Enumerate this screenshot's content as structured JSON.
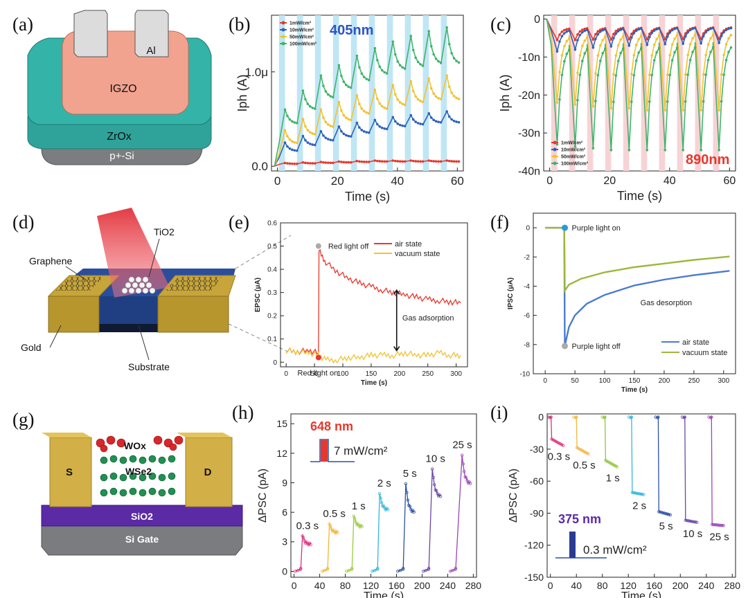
{
  "panel_labels": [
    "(a)",
    "(b)",
    "(c)",
    "(d)",
    "(e)",
    "(f)",
    "(g)",
    "(h)",
    "(i)"
  ],
  "diagram_a": {
    "layers": [
      "Al",
      "IGZO",
      "ZrOx",
      "p+-Si"
    ]
  },
  "diagram_d": {
    "labels": [
      "TiO2",
      "Graphene",
      "Gold",
      "Substrate"
    ]
  },
  "diagram_g": {
    "labels": [
      "WOx",
      "WSe2",
      "S",
      "D",
      "SiO2",
      "Si Gate"
    ]
  },
  "colors": {
    "red": "#e8372c",
    "blue": "#2f62b8",
    "yellow": "#f2c230",
    "green": "#3fb36b",
    "olive": "#9db73a",
    "light_blue": "#bfe6f5",
    "light_pink": "#f7d3d6"
  },
  "chart_data": [
    {
      "panel": "b",
      "type": "line",
      "title": "405nm",
      "xlabel": "Time (s)",
      "ylabel": "Iph (A)",
      "xlim": [
        -2,
        62
      ],
      "ylim": [
        -0.05,
        1.6
      ],
      "xticks": [
        0,
        20,
        40,
        60
      ],
      "yticks": [
        0.0,
        1.0
      ],
      "ytick_labels": [
        "0.0",
        "1.0μ"
      ],
      "shaded_intervals": [
        [
          0.5,
          2.5
        ],
        [
          6.5,
          8.5
        ],
        [
          12.5,
          14.5
        ],
        [
          18.5,
          20.5
        ],
        [
          24.5,
          26.5
        ],
        [
          30.5,
          32.5
        ],
        [
          36.5,
          38.5
        ],
        [
          42.5,
          44.5
        ],
        [
          48.5,
          50.5
        ],
        [
          54.5,
          56.5
        ]
      ],
      "shade_color": "#bfe6f5",
      "series": [
        {
          "name": "1mW/cm²",
          "color": "#e8372c",
          "baseline": [
            0.02,
            0.025,
            0.03,
            0.035,
            0.04,
            0.045,
            0.05,
            0.05,
            0.05,
            0.05
          ],
          "peak": [
            0.035,
            0.04,
            0.045,
            0.05,
            0.055,
            0.06,
            0.06,
            0.06,
            0.06,
            0.06
          ]
        },
        {
          "name": "10mW/cm²",
          "color": "#2f62b8",
          "baseline": [
            0.09,
            0.16,
            0.22,
            0.27,
            0.31,
            0.35,
            0.39,
            0.42,
            0.44,
            0.46
          ],
          "peak": [
            0.25,
            0.32,
            0.37,
            0.42,
            0.46,
            0.49,
            0.52,
            0.54,
            0.56,
            0.58
          ]
        },
        {
          "name": "50mW/cm²",
          "color": "#f2c230",
          "baseline": [
            0.13,
            0.24,
            0.33,
            0.41,
            0.48,
            0.55,
            0.6,
            0.64,
            0.67,
            0.7
          ],
          "peak": [
            0.38,
            0.5,
            0.6,
            0.68,
            0.75,
            0.81,
            0.86,
            0.9,
            0.93,
            0.96
          ]
        },
        {
          "name": "100mW/cm²",
          "color": "#3fb36b",
          "baseline": [
            0.24,
            0.45,
            0.6,
            0.72,
            0.82,
            0.9,
            0.97,
            1.02,
            1.05,
            1.08
          ],
          "peak": [
            0.6,
            0.8,
            0.96,
            1.07,
            1.17,
            1.25,
            1.32,
            1.38,
            1.43,
            1.47
          ]
        }
      ]
    },
    {
      "panel": "c",
      "type": "line",
      "title": "890nm",
      "xlabel": "Time (s)",
      "ylabel": "Iph (A)",
      "xlim": [
        -2,
        62
      ],
      "ylim": [
        -40,
        1
      ],
      "xticks": [
        0,
        20,
        40,
        60
      ],
      "yticks": [
        0,
        -10,
        -20,
        -30,
        -40
      ],
      "ytick_labels": [
        "0",
        "-10n",
        "-20n",
        "-30n",
        "-40n"
      ],
      "shaded_intervals": [
        [
          0.5,
          2.5
        ],
        [
          6.5,
          8.5
        ],
        [
          12.5,
          14.5
        ],
        [
          18.5,
          20.5
        ],
        [
          24.5,
          26.5
        ],
        [
          30.5,
          32.5
        ],
        [
          36.5,
          38.5
        ],
        [
          42.5,
          44.5
        ],
        [
          48.5,
          50.5
        ],
        [
          54.5,
          56.5
        ]
      ],
      "shade_color": "#f7d3d6",
      "series": [
        {
          "name": "1mW/cm²",
          "color": "#e8372c",
          "baseline": [
            -2.5,
            -2.4,
            -2.3,
            -2.3,
            -2.2,
            -2.2,
            -2.2,
            -2.1,
            -2.1,
            -2.1
          ],
          "peak": [
            -5.5,
            -5.5,
            -5.4,
            -5.4,
            -5.3,
            -5.3,
            -5.3,
            -5.2,
            -5.2,
            -5.2
          ]
        },
        {
          "name": "10mW/cm²",
          "color": "#2f62b8",
          "baseline": [
            -3,
            -2.8,
            -2.6,
            -2.5,
            -2.4,
            -2.3,
            -2.3,
            -2.2,
            -2.2,
            -2.2
          ],
          "peak": [
            -8.5,
            -8,
            -7.5,
            -7.2,
            -7,
            -6.8,
            -6.6,
            -6.5,
            -6.4,
            -6.3
          ]
        },
        {
          "name": "50mW/cm²",
          "color": "#f2c230",
          "baseline": [
            -4.5,
            -4.2,
            -4,
            -3.8,
            -3.6,
            -3.5,
            -3.4,
            -3.3,
            -3.2,
            -3.2
          ],
          "peak": [
            -22,
            -22.5,
            -23,
            -23.5,
            -23.5,
            -24,
            -24,
            -24,
            -24,
            -24
          ]
        },
        {
          "name": "100mW/cm²",
          "color": "#3fb36b",
          "baseline": [
            -7,
            -6.8,
            -6.6,
            -6.5,
            -6.4,
            -6.3,
            -6.2,
            -6.2,
            -6.1,
            -6.1
          ],
          "peak": [
            -33,
            -33.5,
            -34,
            -34.5,
            -34.5,
            -34.5,
            -34.5,
            -34.5,
            -34.5,
            -34.5
          ]
        }
      ]
    },
    {
      "panel": "e",
      "type": "line",
      "xlabel": "Time (s)",
      "ylabel": "EPSC (μA)",
      "xlim": [
        -10,
        320
      ],
      "ylim": [
        -0.02,
        0.6
      ],
      "xticks": [
        0,
        50,
        100,
        150,
        200,
        250,
        300
      ],
      "yticks": [
        0.0,
        0.1,
        0.2,
        0.3,
        0.4,
        0.5,
        0.6
      ],
      "annotations": [
        "Red light off",
        "Red light on",
        "Gas adsorption"
      ],
      "series": [
        {
          "name": "air state",
          "color": "#e8372c",
          "points": [
            [
              0,
              0.05
            ],
            [
              20,
              0.045
            ],
            [
              40,
              0.05
            ],
            [
              57,
              0.04
            ],
            [
              58,
              0.48
            ],
            [
              70,
              0.43
            ],
            [
              90,
              0.39
            ],
            [
              110,
              0.36
            ],
            [
              130,
              0.34
            ],
            [
              150,
              0.325
            ],
            [
              170,
              0.31
            ],
            [
              190,
              0.3
            ],
            [
              210,
              0.29
            ],
            [
              230,
              0.28
            ],
            [
              250,
              0.27
            ],
            [
              270,
              0.265
            ],
            [
              290,
              0.26
            ],
            [
              308,
              0.255
            ]
          ]
        },
        {
          "name": "vacuum state",
          "color": "#f2c230",
          "points": [
            [
              0,
              0.05
            ],
            [
              20,
              0.045
            ],
            [
              40,
              0.04
            ],
            [
              57,
              0.03
            ],
            [
              70,
              0.01
            ],
            [
              90,
              0.01
            ],
            [
              110,
              0.02
            ],
            [
              130,
              0.02
            ],
            [
              150,
              0.03
            ],
            [
              170,
              0.03
            ],
            [
              190,
              0.03
            ],
            [
              210,
              0.04
            ],
            [
              230,
              0.03
            ],
            [
              250,
              0.03
            ],
            [
              270,
              0.04
            ],
            [
              290,
              0.03
            ],
            [
              308,
              0.03
            ]
          ]
        }
      ]
    },
    {
      "panel": "f",
      "type": "line",
      "xlabel": "Time (s)",
      "ylabel": "IPSC (μA)",
      "xlim": [
        -20,
        320
      ],
      "ylim": [
        -10,
        1
      ],
      "xticks": [
        0,
        50,
        100,
        150,
        200,
        250,
        300
      ],
      "yticks": [
        0,
        -2,
        -4,
        -6,
        -8,
        -10
      ],
      "annotations": [
        "Purple light on",
        "Purple light off",
        "Gas desorption"
      ],
      "series": [
        {
          "name": "air state",
          "color": "#4a7bd0",
          "points": [
            [
              0,
              0
            ],
            [
              32,
              0
            ],
            [
              33,
              -8.1
            ],
            [
              40,
              -6.8
            ],
            [
              50,
              -6
            ],
            [
              70,
              -5.2
            ],
            [
              100,
              -4.6
            ],
            [
              150,
              -3.95
            ],
            [
              200,
              -3.55
            ],
            [
              250,
              -3.25
            ],
            [
              310,
              -2.95
            ]
          ]
        },
        {
          "name": "vacuum state",
          "color": "#9db73a",
          "points": [
            [
              0,
              0
            ],
            [
              32,
              0
            ],
            [
              33,
              -4.3
            ],
            [
              40,
              -3.9
            ],
            [
              60,
              -3.5
            ],
            [
              100,
              -3.05
            ],
            [
              150,
              -2.7
            ],
            [
              200,
              -2.45
            ],
            [
              250,
              -2.2
            ],
            [
              310,
              -1.97
            ]
          ]
        }
      ]
    },
    {
      "panel": "h",
      "type": "line",
      "xlabel": "Time (s)",
      "ylabel": "ΔPSC (pA)",
      "xlim": [
        -5,
        285
      ],
      "ylim": [
        -0.6,
        16
      ],
      "xticks": [
        0,
        40,
        80,
        120,
        160,
        200,
        240,
        280
      ],
      "yticks": [
        0,
        3,
        6,
        9,
        12,
        15
      ],
      "inset_title": "648 nm",
      "inset_power": "7 mW/cm²",
      "series": [
        {
          "name": "0.3 s",
          "color": "#d6327e",
          "start": 10,
          "peak": 3.6,
          "plateau": 2.7
        },
        {
          "name": "0.5 s",
          "color": "#f2b63c",
          "start": 52,
          "peak": 4.8,
          "plateau": 3.9
        },
        {
          "name": "1 s",
          "color": "#9ccc3c",
          "start": 90,
          "peak": 5.6,
          "plateau": 4.5
        },
        {
          "name": "2 s",
          "color": "#33b7dc",
          "start": 130,
          "peak": 7.9,
          "plateau": 6.2
        },
        {
          "name": "5 s",
          "color": "#2b4fa6",
          "start": 170,
          "peak": 8.9,
          "plateau": 5.9
        },
        {
          "name": "10 s",
          "color": "#6a45a8",
          "start": 210,
          "peak": 10.4,
          "plateau": 7.5
        },
        {
          "name": "25 s",
          "color": "#9b44b8",
          "start": 252,
          "peak": 11.8,
          "plateau": 8.8
        }
      ]
    },
    {
      "panel": "i",
      "type": "line",
      "xlabel": "Time (s)",
      "ylabel": "ΔPSC (pA)",
      "xlim": [
        -5,
        285
      ],
      "ylim": [
        -150,
        3
      ],
      "xticks": [
        0,
        40,
        80,
        120,
        160,
        200,
        240,
        280
      ],
      "yticks": [
        0,
        -30,
        -60,
        -90,
        -120,
        -150
      ],
      "inset_title": "375 nm",
      "inset_power": "0.3 mW/cm²",
      "series": [
        {
          "name": "0.3 s",
          "color": "#d6327e",
          "start": 1,
          "drop": -20,
          "end": -26
        },
        {
          "name": "0.5 s",
          "color": "#f2b63c",
          "start": 40,
          "drop": -28,
          "end": -34
        },
        {
          "name": "1 s",
          "color": "#8cc63c",
          "start": 84,
          "drop": -40,
          "end": -46
        },
        {
          "name": "2 s",
          "color": "#33b7dc",
          "start": 125,
          "drop": -70,
          "end": -72
        },
        {
          "name": "5 s",
          "color": "#2b4fa6",
          "start": 166,
          "drop": -88,
          "end": -91
        },
        {
          "name": "10 s",
          "color": "#6a45a8",
          "start": 207,
          "drop": -96,
          "end": -98
        },
        {
          "name": "25 s",
          "color": "#9b44b8",
          "start": 248,
          "drop": -100,
          "end": -101
        }
      ]
    }
  ]
}
